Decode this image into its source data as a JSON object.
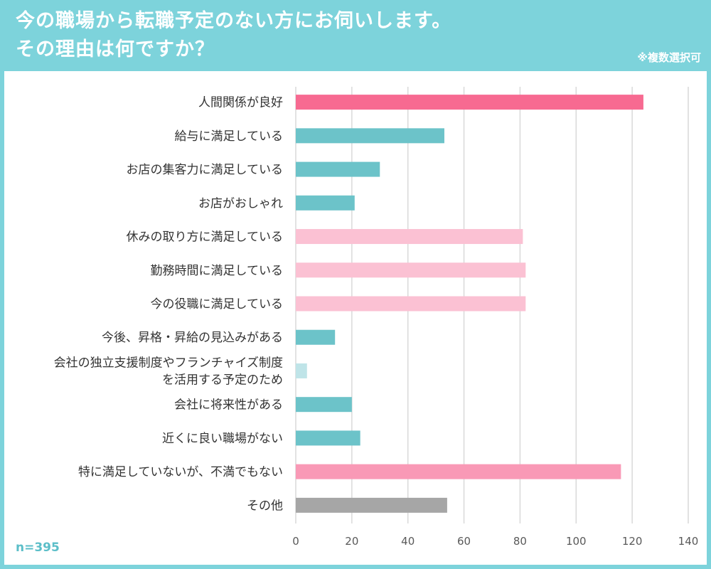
{
  "header": {
    "title_line1": "今の職場から転職予定のない方にお伺いします。",
    "title_line2": "その理由は何ですか？",
    "note": "※複数選択可"
  },
  "sample_size": "n=395",
  "chart_data": {
    "type": "bar",
    "orientation": "horizontal",
    "title": "今の職場から転職予定のない方にお伺いします。その理由は何ですか？",
    "categories": [
      [
        "人間関係が良好"
      ],
      [
        "給与に満足している"
      ],
      [
        "お店の集客力に満足している"
      ],
      [
        "お店がおしゃれ"
      ],
      [
        "休みの取り方に満足している"
      ],
      [
        "勤務時間に満足している"
      ],
      [
        "今の役職に満足している"
      ],
      [
        "今後、昇格・昇給の見込みがある"
      ],
      [
        "会社の独立支援制度やフランチャイズ制度",
        "を活用する予定のため"
      ],
      [
        "会社に将来性がある"
      ],
      [
        "近くに良い職場がない"
      ],
      [
        "特に満足していないが、不満でもない"
      ],
      [
        "その他"
      ]
    ],
    "values": [
      124,
      53,
      30,
      21,
      81,
      82,
      82,
      14,
      4,
      20,
      23,
      116,
      54
    ],
    "colors": [
      "#f76a91",
      "#6cc3c9",
      "#6cc3c9",
      "#6cc3c9",
      "#fbc1d3",
      "#fbc1d3",
      "#fbc1d3",
      "#6cc3c9",
      "#bfe4e8",
      "#6cc3c9",
      "#6cc3c9",
      "#f999b6",
      "#a6a6a6"
    ],
    "xlim": [
      0,
      140
    ],
    "xticks": [
      "0",
      "20",
      "40",
      "60",
      "80",
      "100",
      "120",
      "140"
    ],
    "grid": true,
    "xlabel": "",
    "ylabel": ""
  }
}
